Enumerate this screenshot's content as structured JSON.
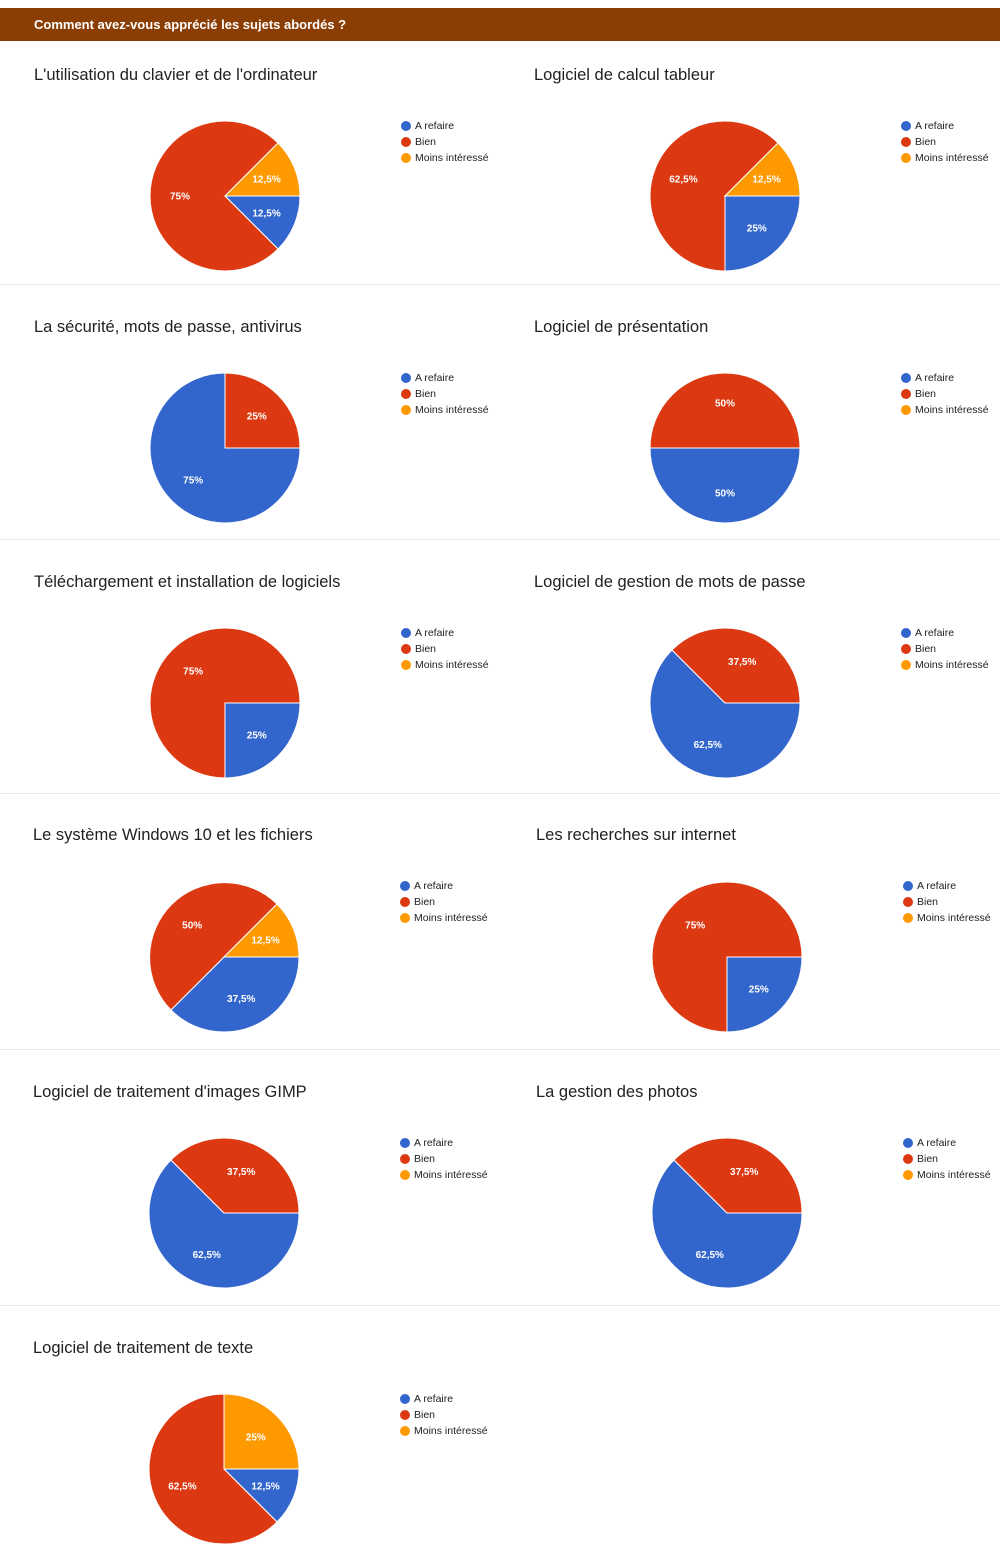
{
  "header": {
    "title": "Comment avez-vous apprécié les sujets abordés ?",
    "background": "#8a3e04"
  },
  "legend": {
    "items": [
      {
        "label": "A refaire",
        "color": "#3366cc"
      },
      {
        "label": "Bien",
        "color": "#dc3912"
      },
      {
        "label": "Moins intéressé",
        "color": "#ff9900"
      }
    ]
  },
  "chart_data": [
    {
      "type": "pie",
      "title": "L'utilisation du clavier et de l'ordinateur",
      "categories": [
        "A refaire",
        "Bien",
        "Moins intéressé"
      ],
      "values": [
        12.5,
        75,
        12.5
      ],
      "labels": [
        "12,5%",
        "75%",
        "12,5%"
      ]
    },
    {
      "type": "pie",
      "title": "Logiciel de calcul tableur",
      "categories": [
        "A refaire",
        "Bien",
        "Moins intéressé"
      ],
      "values": [
        25,
        62.5,
        12.5
      ],
      "labels": [
        "25%",
        "62,5%",
        "12,5%"
      ]
    },
    {
      "type": "pie",
      "title": "La sécurité, mots de passe, antivirus",
      "categories": [
        "A refaire",
        "Bien",
        "Moins intéressé"
      ],
      "values": [
        75,
        25,
        0
      ],
      "labels": [
        "75%",
        "25%",
        ""
      ]
    },
    {
      "type": "pie",
      "title": "Logiciel de présentation",
      "categories": [
        "A refaire",
        "Bien",
        "Moins intéressé"
      ],
      "values": [
        50,
        50,
        0
      ],
      "labels": [
        "50%",
        "50%",
        ""
      ]
    },
    {
      "type": "pie",
      "title": "Téléchargement et installation de logiciels",
      "categories": [
        "A refaire",
        "Bien",
        "Moins intéressé"
      ],
      "values": [
        25,
        75,
        0
      ],
      "labels": [
        "25%",
        "75%",
        ""
      ]
    },
    {
      "type": "pie",
      "title": "Logiciel de gestion de mots de passe",
      "categories": [
        "A refaire",
        "Bien",
        "Moins intéressé"
      ],
      "values": [
        62.5,
        37.5,
        0
      ],
      "labels": [
        "62,5%",
        "37,5%",
        ""
      ]
    },
    {
      "type": "pie",
      "title": "Le système Windows 10 et les fichiers",
      "categories": [
        "A refaire",
        "Bien",
        "Moins intéressé"
      ],
      "values": [
        37.5,
        50,
        12.5
      ],
      "labels": [
        "37,5%",
        "50%",
        "12,5%"
      ]
    },
    {
      "type": "pie",
      "title": "Les recherches sur internet",
      "categories": [
        "A refaire",
        "Bien",
        "Moins intéressé"
      ],
      "values": [
        25,
        75,
        0
      ],
      "labels": [
        "25%",
        "75%",
        ""
      ]
    },
    {
      "type": "pie",
      "title": "Logiciel de traitement d'images GIMP",
      "categories": [
        "A refaire",
        "Bien",
        "Moins intéressé"
      ],
      "values": [
        62.5,
        37.5,
        0
      ],
      "labels": [
        "62,5%",
        "37,5%",
        ""
      ]
    },
    {
      "type": "pie",
      "title": "La gestion des photos",
      "categories": [
        "A refaire",
        "Bien",
        "Moins intéressé"
      ],
      "values": [
        62.5,
        37.5,
        0
      ],
      "labels": [
        "62,5%",
        "37,5%",
        ""
      ]
    },
    {
      "type": "pie",
      "title": "Logiciel de traitement de texte",
      "categories": [
        "A refaire",
        "Bien",
        "Moins intéressé"
      ],
      "values": [
        12.5,
        62.5,
        25
      ],
      "labels": [
        "12,5%",
        "62,5%",
        "25%"
      ]
    }
  ]
}
